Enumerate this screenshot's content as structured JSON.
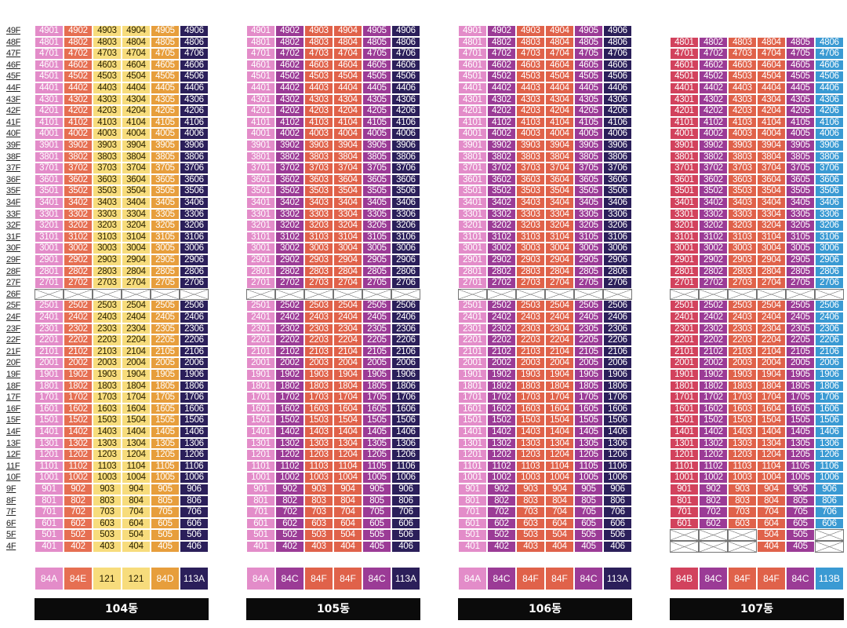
{
  "floors": [
    "49F",
    "48F",
    "47F",
    "46F",
    "45F",
    "44F",
    "43F",
    "42F",
    "41F",
    "40F",
    "39F",
    "38F",
    "37F",
    "36F",
    "35F",
    "34F",
    "33F",
    "32F",
    "31F",
    "30F",
    "29F",
    "28F",
    "27F",
    "26F",
    "25F",
    "24F",
    "23F",
    "22F",
    "21F",
    "20F",
    "19F",
    "18F",
    "17F",
    "16F",
    "15F",
    "14F",
    "13F",
    "12F",
    "11F",
    "10F",
    "9F",
    "8F",
    "7F",
    "6F",
    "5F",
    "4F"
  ],
  "colors": {
    "84A": "#e38cc9",
    "84E": "#e66f52",
    "121": "#f7dc7c",
    "84D": "#e79e3c",
    "113A": "#2b1f5a",
    "84C": "#9b3b96",
    "84F": "#e0624a",
    "84B": "#d2425d",
    "113B": "#3a9ad3"
  },
  "buildings": [
    {
      "name": "104동",
      "columns": [
        {
          "type": "84A",
          "suffix": "01"
        },
        {
          "type": "84E",
          "suffix": "02"
        },
        {
          "type": "121",
          "suffix": "03"
        },
        {
          "type": "121",
          "suffix": "04"
        },
        {
          "type": "84D",
          "suffix": "05"
        },
        {
          "type": "113A",
          "suffix": "06"
        }
      ],
      "top_floor": 49,
      "missing_units": []
    },
    {
      "name": "105동",
      "columns": [
        {
          "type": "84A",
          "suffix": "01"
        },
        {
          "type": "84C",
          "suffix": "02"
        },
        {
          "type": "84F",
          "suffix": "03"
        },
        {
          "type": "84F",
          "suffix": "04"
        },
        {
          "type": "84C",
          "suffix": "05"
        },
        {
          "type": "113A",
          "suffix": "06"
        }
      ],
      "top_floor": 49,
      "missing_units": []
    },
    {
      "name": "106동",
      "columns": [
        {
          "type": "84A",
          "suffix": "01"
        },
        {
          "type": "84C",
          "suffix": "02"
        },
        {
          "type": "84F",
          "suffix": "03"
        },
        {
          "type": "84F",
          "suffix": "04"
        },
        {
          "type": "84C",
          "suffix": "05"
        },
        {
          "type": "113A",
          "suffix": "06"
        }
      ],
      "top_floor": 49,
      "missing_units": []
    },
    {
      "name": "107동",
      "columns": [
        {
          "type": "84B",
          "suffix": "01"
        },
        {
          "type": "84C",
          "suffix": "02"
        },
        {
          "type": "84F",
          "suffix": "03"
        },
        {
          "type": "84F",
          "suffix": "04"
        },
        {
          "type": "84C",
          "suffix": "05"
        },
        {
          "type": "113B",
          "suffix": "06"
        }
      ],
      "top_floor": 48,
      "missing_units": [
        "501",
        "502",
        "503",
        "506",
        "401",
        "402",
        "403",
        "406"
      ]
    }
  ],
  "empty_floor": 26
}
